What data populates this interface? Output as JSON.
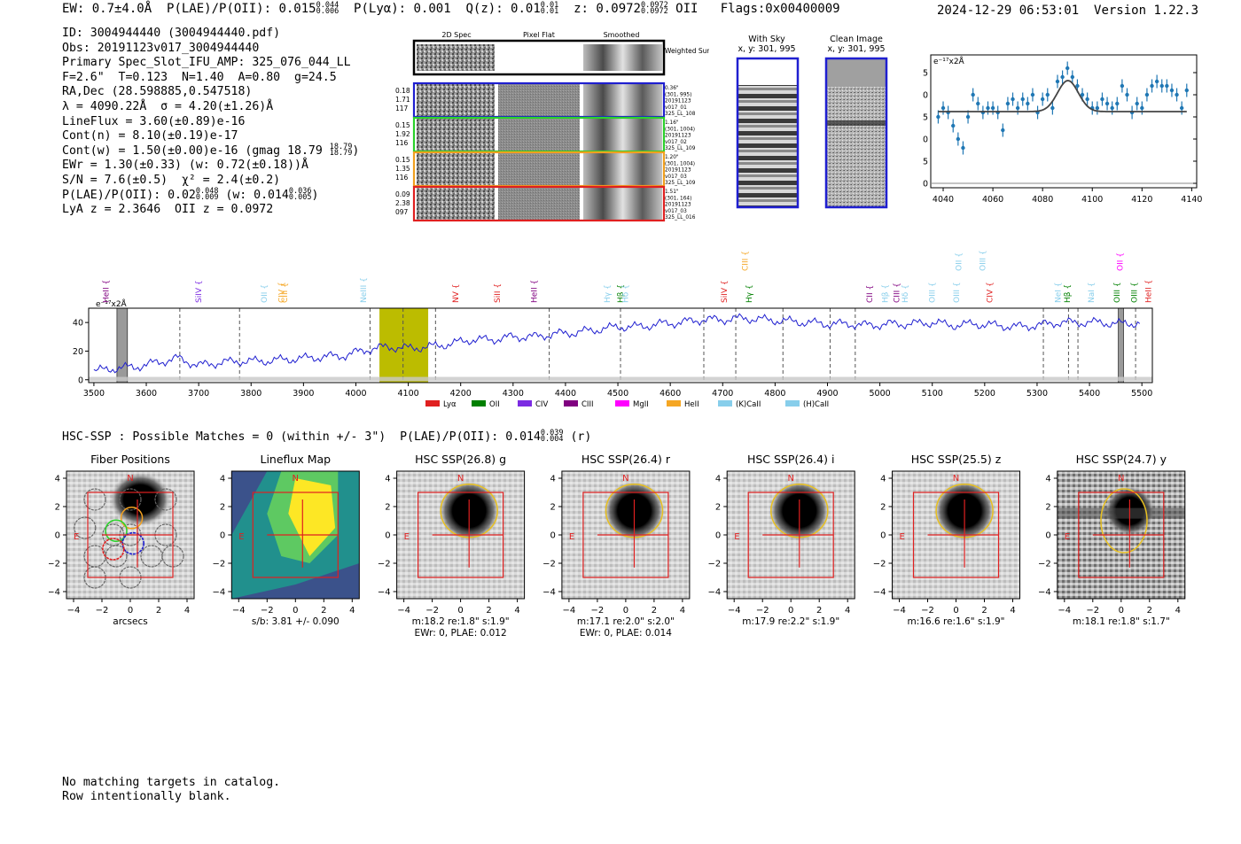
{
  "header": {
    "ew_label": "EW: 0.7±4.0Å",
    "plae_label": "P(LAE)/P(OII): 0.015",
    "plae_hi": "0.044",
    "plae_lo": "0.006",
    "plya_label": "P(Lyα): 0.001",
    "q_label": "Q(z): 0.01",
    "q_hi": "0.01",
    "q_lo": "0.01",
    "z_label": "z: 0.0972",
    "z_hi": "0.0972",
    "z_lo": "0.0972",
    "z_line": "OII",
    "flags": "Flags:0x00400009",
    "timestamp": "2024-12-29 06:53:01",
    "version": "Version 1.22.3"
  },
  "info": {
    "id": "ID: 3004944440 (3004944440.pdf)",
    "obs": "Obs: 20191123v017_3004944440",
    "primary": "Primary Spec_Slot_IFU_AMP: 325_076_044_LL",
    "params": "F=2.6\"  T=0.123  N=1.40  A=0.80  g=24.5",
    "radec": "RA,Dec (28.598885,0.547518)",
    "lambda": "λ = 4090.22Å  σ = 4.20(±1.26)Å",
    "lineflux": "LineFlux = 3.60(±0.89)e-16",
    "contn": "Cont(n) = 8.10(±0.19)e-17",
    "contw": "Cont(w) = 1.50(±0.00)e-16 (gmag 18.79",
    "contw_hi": "18.79",
    "contw_lo": "18.79",
    "ewr": "EWr = 1.30(±0.33) (w: 0.72(±0.18))Å",
    "sn": "S/N = 7.6(±0.5)  χ² = 2.4(±0.2)",
    "plae2": "P(LAE)/P(OII): 0.02",
    "plae2_hi": "0.048",
    "plae2_lo": "0.009",
    "plae2_w": "(w: 0.014",
    "plae2_w_hi": "0.036",
    "plae2_w_lo": "0.005",
    "lya_z": "LyA z = 2.3646  OII z = 0.0972"
  },
  "spec2d": {
    "col_labels": [
      "2D Spec",
      "Pixel Flat",
      "Smoothed"
    ],
    "weighted_label": "Weighted Sum",
    "rows": [
      {
        "left": [
          "0.18",
          "1.71",
          "117"
        ],
        "right": [
          "0.36\"",
          "(301, 995)",
          "20191123",
          "v017_01",
          "325_LL_108"
        ],
        "color": "#1f1fd0"
      },
      {
        "left": [
          "0.15",
          "1.92",
          "116"
        ],
        "right": [
          "1.16\"",
          "(301, 1004)",
          "20191123",
          "v017_02",
          "325_LL_109"
        ],
        "color": "#2bd12b"
      },
      {
        "left": [
          "0.15",
          "1.35",
          "116"
        ],
        "right": [
          "1.20\"",
          "(301, 1004)",
          "20191123",
          "v017_03",
          "325_LL_109"
        ],
        "color": "#f0a020"
      },
      {
        "left": [
          "0.09",
          "2.38",
          "097"
        ],
        "right": [
          "1.51\"",
          "(301, 164)",
          "20191123",
          "v017_03",
          "325_LL_016"
        ],
        "color": "#e02020"
      }
    ]
  },
  "sky_panels": {
    "with_sky_title": "With Sky",
    "with_sky_coords": "x, y: 301, 995",
    "clean_title": "Clean Image",
    "clean_coords": "x, y: 301, 995"
  },
  "chart_data": [
    {
      "type": "scatter",
      "name": "line-fit-zoom",
      "units_label": "e⁻¹⁷x2Å",
      "xlim": [
        4035,
        4142
      ],
      "ylim": [
        -1,
        29
      ],
      "xticks": [
        4040,
        4060,
        4080,
        4100,
        4120,
        4140
      ],
      "yticks": [
        0,
        5,
        10,
        15,
        20,
        25
      ],
      "x": [
        4038,
        4040,
        4042,
        4044,
        4046,
        4048,
        4050,
        4052,
        4054,
        4056,
        4058,
        4060,
        4062,
        4064,
        4066,
        4068,
        4070,
        4072,
        4074,
        4076,
        4078,
        4080,
        4082,
        4084,
        4086,
        4088,
        4090,
        4092,
        4094,
        4096,
        4098,
        4100,
        4102,
        4104,
        4106,
        4108,
        4110,
        4112,
        4114,
        4116,
        4118,
        4120,
        4122,
        4124,
        4126,
        4128,
        4130,
        4132,
        4134,
        4136,
        4138
      ],
      "y": [
        15,
        17,
        16,
        13,
        10,
        8,
        15,
        20,
        18,
        16,
        17,
        17,
        16,
        12,
        18,
        19,
        17,
        19,
        18,
        20,
        16,
        19,
        20,
        17,
        23,
        24,
        26,
        24,
        22,
        20,
        19,
        17,
        17,
        19,
        18,
        17,
        18,
        22,
        20,
        16,
        18,
        17,
        20,
        22,
        23,
        22,
        22,
        21,
        20,
        17,
        21
      ],
      "yerr": [
        1.5,
        1.5,
        1.5,
        1.5,
        1.5,
        1.5,
        1.5,
        1.5,
        1.5,
        1.5,
        1.5,
        1.5,
        1.5,
        1.5,
        1.5,
        1.5,
        1.5,
        1.5,
        1.5,
        1.5,
        1.5,
        1.5,
        1.5,
        1.5,
        1.5,
        1.5,
        1.5,
        1.5,
        1.5,
        1.5,
        1.5,
        1.5,
        1.5,
        1.5,
        1.5,
        1.5,
        1.5,
        1.5,
        1.5,
        1.5,
        1.5,
        1.5,
        1.5,
        1.5,
        1.5,
        1.5,
        1.5,
        1.5,
        1.5,
        1.5,
        1.5
      ],
      "fit": {
        "continuum": 16.2,
        "amplitude": 7.0,
        "center": 4090.2,
        "sigma": 4.2
      }
    },
    {
      "type": "line",
      "name": "full-spectrum",
      "units_label": "e⁻¹⁷x2Å",
      "xlim": [
        3490,
        5520
      ],
      "ylim": [
        -2,
        50
      ],
      "xticks": [
        3500,
        3600,
        3700,
        3800,
        3900,
        4000,
        4100,
        4200,
        4300,
        4400,
        4500,
        4600,
        4700,
        4800,
        4900,
        5000,
        5100,
        5200,
        5300,
        5400,
        5500
      ],
      "yticks": [
        0,
        20,
        40
      ],
      "x": [
        3500,
        3540,
        3580,
        3620,
        3660,
        3700,
        3740,
        3780,
        3820,
        3860,
        3900,
        3940,
        3980,
        4020,
        4060,
        4100,
        4140,
        4180,
        4220,
        4260,
        4300,
        4340,
        4380,
        4420,
        4460,
        4500,
        4540,
        4580,
        4620,
        4660,
        4700,
        4740,
        4780,
        4820,
        4860,
        4900,
        4940,
        4980,
        5020,
        5060,
        5100,
        5140,
        5180,
        5220,
        5260,
        5300,
        5340,
        5380,
        5420,
        5460,
        5500
      ],
      "y": [
        6,
        8,
        9,
        12,
        15,
        10,
        12,
        13,
        13,
        14,
        15,
        16,
        17,
        21,
        23,
        22,
        23,
        25,
        28,
        28,
        30,
        30,
        32,
        33,
        35,
        37,
        37,
        39,
        40,
        42,
        42,
        43,
        42,
        41,
        40,
        39,
        39,
        38,
        39,
        39,
        40,
        38,
        39,
        38,
        37,
        38,
        40,
        40,
        40,
        39,
        40
      ],
      "highlight_range": [
        4045,
        4138
      ],
      "hatched_ranges": [
        [
          3544,
          3564
        ],
        [
          5455,
          5465
        ]
      ],
      "dashed_lines": [
        3664,
        3778,
        4027,
        4090,
        4152,
        4369,
        4505,
        4664,
        4725,
        4815,
        4905,
        4953,
        5312,
        5360,
        5378,
        5488
      ],
      "annotations": [
        {
          "label": "HeII",
          "x": 3523,
          "color": "#800080",
          "level": 1
        },
        {
          "label": "SiIV",
          "x": 3700,
          "color": "#7b2be2",
          "level": 1
        },
        {
          "label": "OII",
          "x": 3825,
          "color": "#87ceeb",
          "level": 1
        },
        {
          "label": "CIV",
          "x": 3858,
          "color": "#f5a623",
          "level": 1
        },
        {
          "label": "CIII",
          "x": 3864,
          "color": "#f5a623",
          "level": 1
        },
        {
          "label": "NeIII",
          "x": 4014,
          "color": "#87ceeb",
          "level": 1
        },
        {
          "label": "NV",
          "x": 4190,
          "color": "#e02020",
          "level": 1
        },
        {
          "label": "SiII",
          "x": 4270,
          "color": "#e02020",
          "level": 1
        },
        {
          "label": "HeII",
          "x": 4340,
          "color": "#800080",
          "level": 1
        },
        {
          "label": "Hγ",
          "x": 4480,
          "color": "#87ceeb",
          "level": 1
        },
        {
          "label": "Hβ",
          "x": 4505,
          "color": "#008000",
          "level": 1
        },
        {
          "label": "Hδ",
          "x": 4514,
          "color": "#87ceeb",
          "level": 1
        },
        {
          "label": "SiIV",
          "x": 4703,
          "color": "#e02020",
          "level": 1
        },
        {
          "label": "CIII",
          "x": 4743,
          "color": "#f5a623",
          "level": 2
        },
        {
          "label": "Hγ",
          "x": 4750,
          "color": "#008000",
          "level": 1
        },
        {
          "label": "CII",
          "x": 4980,
          "color": "#800080",
          "level": 1
        },
        {
          "label": "Hβ",
          "x": 5010,
          "color": "#87ceeb",
          "level": 1
        },
        {
          "label": "CIII",
          "x": 5032,
          "color": "#800080",
          "level": 1
        },
        {
          "label": "Hδ",
          "x": 5048,
          "color": "#87ceeb",
          "level": 1
        },
        {
          "label": "OIII",
          "x": 5100,
          "color": "#87ceeb",
          "level": 1
        },
        {
          "label": "OIII",
          "x": 5146,
          "color": "#87ceeb",
          "level": 1
        },
        {
          "label": "OII",
          "x": 5150,
          "color": "#87ceeb",
          "level": 2
        },
        {
          "label": "OIII",
          "x": 5196,
          "color": "#87ceeb",
          "level": 2
        },
        {
          "label": "CIV",
          "x": 5210,
          "color": "#e02020",
          "level": 1
        },
        {
          "label": "NeI",
          "x": 5340,
          "color": "#87ceeb",
          "level": 1
        },
        {
          "label": "Hβ",
          "x": 5358,
          "color": "#008000",
          "level": 1
        },
        {
          "label": "NaI",
          "x": 5403,
          "color": "#87ceeb",
          "level": 1
        },
        {
          "label": "OIII",
          "x": 5452,
          "color": "#008000",
          "level": 1
        },
        {
          "label": "OII",
          "x": 5458,
          "color": "#ff00ff",
          "level": 2
        },
        {
          "label": "OIII",
          "x": 5485,
          "color": "#008000",
          "level": 1
        },
        {
          "label": "HeII",
          "x": 5512,
          "color": "#e02020",
          "level": 1
        }
      ],
      "legend": [
        {
          "label": "Lyα",
          "color": "#e02020"
        },
        {
          "label": "OII",
          "color": "#008000"
        },
        {
          "label": "CIV",
          "color": "#7b2be2"
        },
        {
          "label": "CIII",
          "color": "#800080"
        },
        {
          "label": "MgII",
          "color": "#ff00ff"
        },
        {
          "label": "HeII",
          "color": "#f5a623"
        },
        {
          "label": "(K)CaII",
          "color": "#87ceeb"
        },
        {
          "label": "(H)CaII",
          "color": "#87ceeb"
        }
      ]
    }
  ],
  "hsc": {
    "line_label": "HSC-SSP : Possible Matches = 0 (within +/- 3\")  P(LAE)/P(OII): 0.014",
    "line_hi": "0.039",
    "line_lo": "0.004",
    "line_suffix": "(r)",
    "ticks": [
      "−4",
      "−2",
      "0",
      "2",
      "4"
    ],
    "north": "N",
    "east": "E",
    "panels": [
      {
        "title": "Fiber Positions",
        "caption1": "arcsecs",
        "caption2": "",
        "kind": "fiber"
      },
      {
        "title": "Lineflux Map",
        "caption1": "s/b: 3.81 +/- 0.090",
        "caption2": "",
        "kind": "lineflux"
      },
      {
        "title": "HSC SSP(26.8) g",
        "caption1": "m:18.2  re:1.8\"  s:1.9\"",
        "caption2": "EWr: 0, PLAE: 0.012",
        "kind": "hsc"
      },
      {
        "title": "HSC SSP(26.4) r",
        "caption1": "m:17.1  re:2.0\"  s:2.0\"",
        "caption2": "EWr: 0, PLAE: 0.014",
        "kind": "hsc"
      },
      {
        "title": "HSC SSP(26.4) i",
        "caption1": "m:17.9  re:2.2\"  s:1.9\"",
        "caption2": "",
        "kind": "hsc"
      },
      {
        "title": "HSC SSP(25.5) z",
        "caption1": "m:16.6  re:1.6\"  s:1.9\"",
        "caption2": "",
        "kind": "hsc"
      },
      {
        "title": "HSC SSP(24.7) y",
        "caption1": "m:18.1  re:1.8\"  s:1.7\"",
        "caption2": "",
        "kind": "hscy"
      }
    ]
  },
  "footer": {
    "line1": "No matching targets in catalog.",
    "line2": "Row intentionally blank."
  }
}
